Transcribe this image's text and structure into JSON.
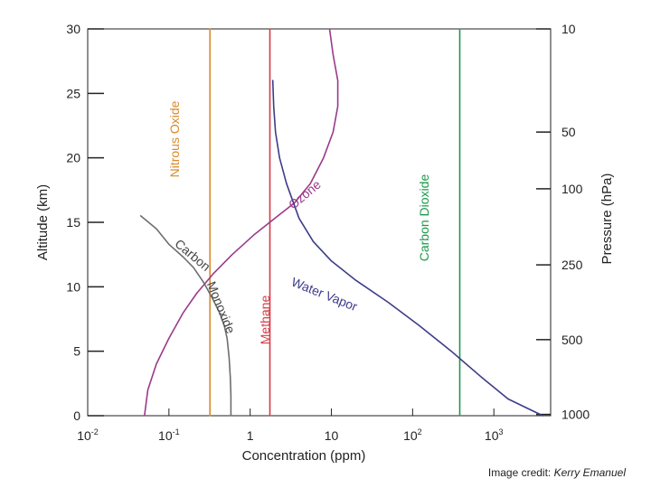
{
  "chart_data": {
    "type": "line",
    "x_axis": {
      "label": "Concentration (ppm)",
      "scale": "log",
      "range": [
        0.01,
        5000
      ],
      "ticks": [
        {
          "value": 0.01,
          "base": "10",
          "exp": "-2"
        },
        {
          "value": 0.1,
          "base": "10",
          "exp": "-1"
        },
        {
          "value": 1,
          "base": "1",
          "exp": ""
        },
        {
          "value": 10,
          "base": "10",
          "exp": ""
        },
        {
          "value": 100,
          "base": "10",
          "exp": "2"
        },
        {
          "value": 1000,
          "base": "10",
          "exp": "3"
        }
      ]
    },
    "y_axis_left": {
      "label": "Altitude (km)",
      "range": [
        0,
        30
      ],
      "ticks": [
        0,
        5,
        10,
        15,
        20,
        25,
        30
      ]
    },
    "y_axis_right": {
      "label": "Pressure (hPa)",
      "ticks": [
        {
          "label": "10",
          "altitude_km": 30
        },
        {
          "label": "50",
          "altitude_km": 22
        },
        {
          "label": "100",
          "altitude_km": 17.6
        },
        {
          "label": "250",
          "altitude_km": 11.7
        },
        {
          "label": "500",
          "altitude_km": 5.9
        },
        {
          "label": "1000",
          "altitude_km": 0.1
        }
      ]
    },
    "series": [
      {
        "name": "Nitrous Oxide",
        "color": "#d98a2c",
        "points": [
          [
            0.32,
            0
          ],
          [
            0.32,
            30
          ]
        ]
      },
      {
        "name": "Methane",
        "color": "#d33a45",
        "points": [
          [
            1.75,
            0
          ],
          [
            1.75,
            30
          ]
        ]
      },
      {
        "name": "Carbon Dioxide",
        "color": "#1a9a4a",
        "points": [
          [
            380,
            0
          ],
          [
            380,
            30
          ]
        ]
      },
      {
        "name": "Ozone",
        "color": "#9a3a8a",
        "points": [
          [
            0.05,
            0
          ],
          [
            0.055,
            2
          ],
          [
            0.07,
            4
          ],
          [
            0.1,
            6
          ],
          [
            0.15,
            8
          ],
          [
            0.22,
            9.5
          ],
          [
            0.35,
            11
          ],
          [
            0.6,
            12.5
          ],
          [
            1.1,
            14
          ],
          [
            2,
            15.3
          ],
          [
            3.5,
            16.5
          ],
          [
            5.5,
            18
          ],
          [
            8,
            20
          ],
          [
            10.5,
            22
          ],
          [
            12,
            24
          ],
          [
            12,
            26
          ],
          [
            10.5,
            28
          ],
          [
            9.5,
            30
          ]
        ]
      },
      {
        "name": "Carbon Monoxide",
        "color": "#6e6e6e",
        "points": [
          [
            0.045,
            15.5
          ],
          [
            0.07,
            14.5
          ],
          [
            0.1,
            13.3
          ],
          [
            0.15,
            12.3
          ],
          [
            0.2,
            11.5
          ],
          [
            0.27,
            10.3
          ],
          [
            0.35,
            9
          ],
          [
            0.42,
            8
          ],
          [
            0.48,
            7
          ],
          [
            0.52,
            6
          ],
          [
            0.55,
            4.5
          ],
          [
            0.57,
            3
          ],
          [
            0.58,
            1.5
          ],
          [
            0.58,
            0
          ]
        ]
      },
      {
        "name": "Water Vapor",
        "color": "#3c3c8a",
        "points": [
          [
            1.9,
            26
          ],
          [
            1.95,
            24
          ],
          [
            2.05,
            22
          ],
          [
            2.3,
            20
          ],
          [
            2.8,
            18
          ],
          [
            4,
            15.3
          ],
          [
            6,
            13.5
          ],
          [
            10,
            12
          ],
          [
            20,
            10.5
          ],
          [
            50,
            8.8
          ],
          [
            120,
            7
          ],
          [
            300,
            5
          ],
          [
            700,
            3
          ],
          [
            1500,
            1.3
          ],
          [
            4000,
            0
          ]
        ]
      }
    ],
    "annotations": [
      {
        "text": "Nitrous Oxide",
        "series": "Nitrous Oxide"
      },
      {
        "text": "Methane",
        "series": "Methane"
      },
      {
        "text": "Carbon Dioxide",
        "series": "Carbon Dioxide"
      },
      {
        "text": "Ozone",
        "series": "Ozone"
      },
      {
        "text": "Carbon",
        "series": "Carbon Monoxide"
      },
      {
        "text": "Monoxide",
        "series": "Carbon Monoxide"
      },
      {
        "text": "Water Vapor",
        "series": "Water Vapor"
      }
    ]
  },
  "credit": {
    "prefix": "Image credit:",
    "name": "Kerry Emanuel"
  }
}
